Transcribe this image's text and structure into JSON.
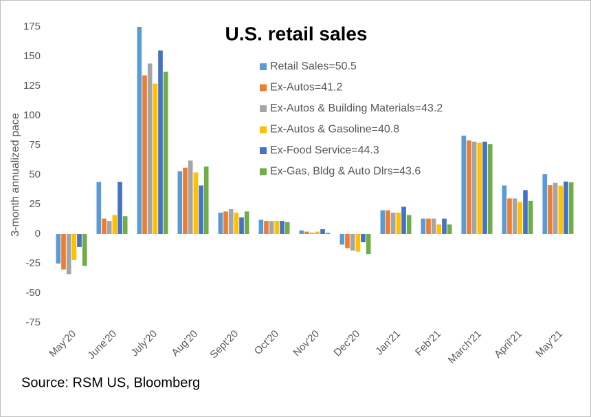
{
  "chart_data": {
    "type": "bar",
    "title": "U.S. retail sales",
    "y_label": "3-month annualized pace",
    "source": "Source: RSM US, Bloomberg",
    "categories": [
      "May'20",
      "June'20",
      "July'20",
      "Aug'20",
      "Sept'20",
      "Oct'20",
      "Nov'20",
      "Dec'20",
      "Jan'21",
      "Feb'21",
      "March'21",
      "April'21",
      "May'21"
    ],
    "series": [
      {
        "name": "Retail Sales=50.5",
        "color": "#5b9bd5",
        "values": [
          -25,
          44,
          175,
          53,
          18,
          12,
          3,
          -9,
          20,
          13,
          83,
          41,
          50.5
        ]
      },
      {
        "name": "Ex-Autos=41.2",
        "color": "#ed7d31",
        "values": [
          -30,
          13,
          134,
          56,
          19,
          11,
          2,
          -12,
          20,
          13,
          79,
          30,
          41.2
        ]
      },
      {
        "name": "Ex-Autos & Building Materials=43.2",
        "color": "#a5a5a5",
        "values": [
          -34,
          11,
          144,
          62,
          21,
          11,
          1,
          -14,
          18,
          13,
          78,
          30,
          43.2
        ]
      },
      {
        "name": "Ex-Autos & Gasoline=40.8",
        "color": "#ffc000",
        "values": [
          -22,
          16,
          127,
          52,
          18,
          11,
          2,
          -15,
          18,
          8,
          77,
          27,
          40.8
        ]
      },
      {
        "name": "Ex-Food Service=44.3",
        "color": "#4472c4",
        "values": [
          -11,
          44,
          155,
          41,
          14,
          11,
          4,
          -7,
          23,
          13,
          78,
          37,
          44.3
        ]
      },
      {
        "name": "Ex-Gas, Bldg & Auto Dlrs=43.6",
        "color": "#70ad47",
        "values": [
          -27,
          15,
          137,
          57,
          19,
          10,
          1,
          -17,
          16,
          8,
          76,
          28,
          43.6
        ]
      }
    ],
    "ylim": [
      -75,
      175
    ],
    "yticks": [
      -75,
      -50,
      -25,
      0,
      25,
      50,
      75,
      100,
      125,
      150,
      175
    ],
    "grid": false
  }
}
